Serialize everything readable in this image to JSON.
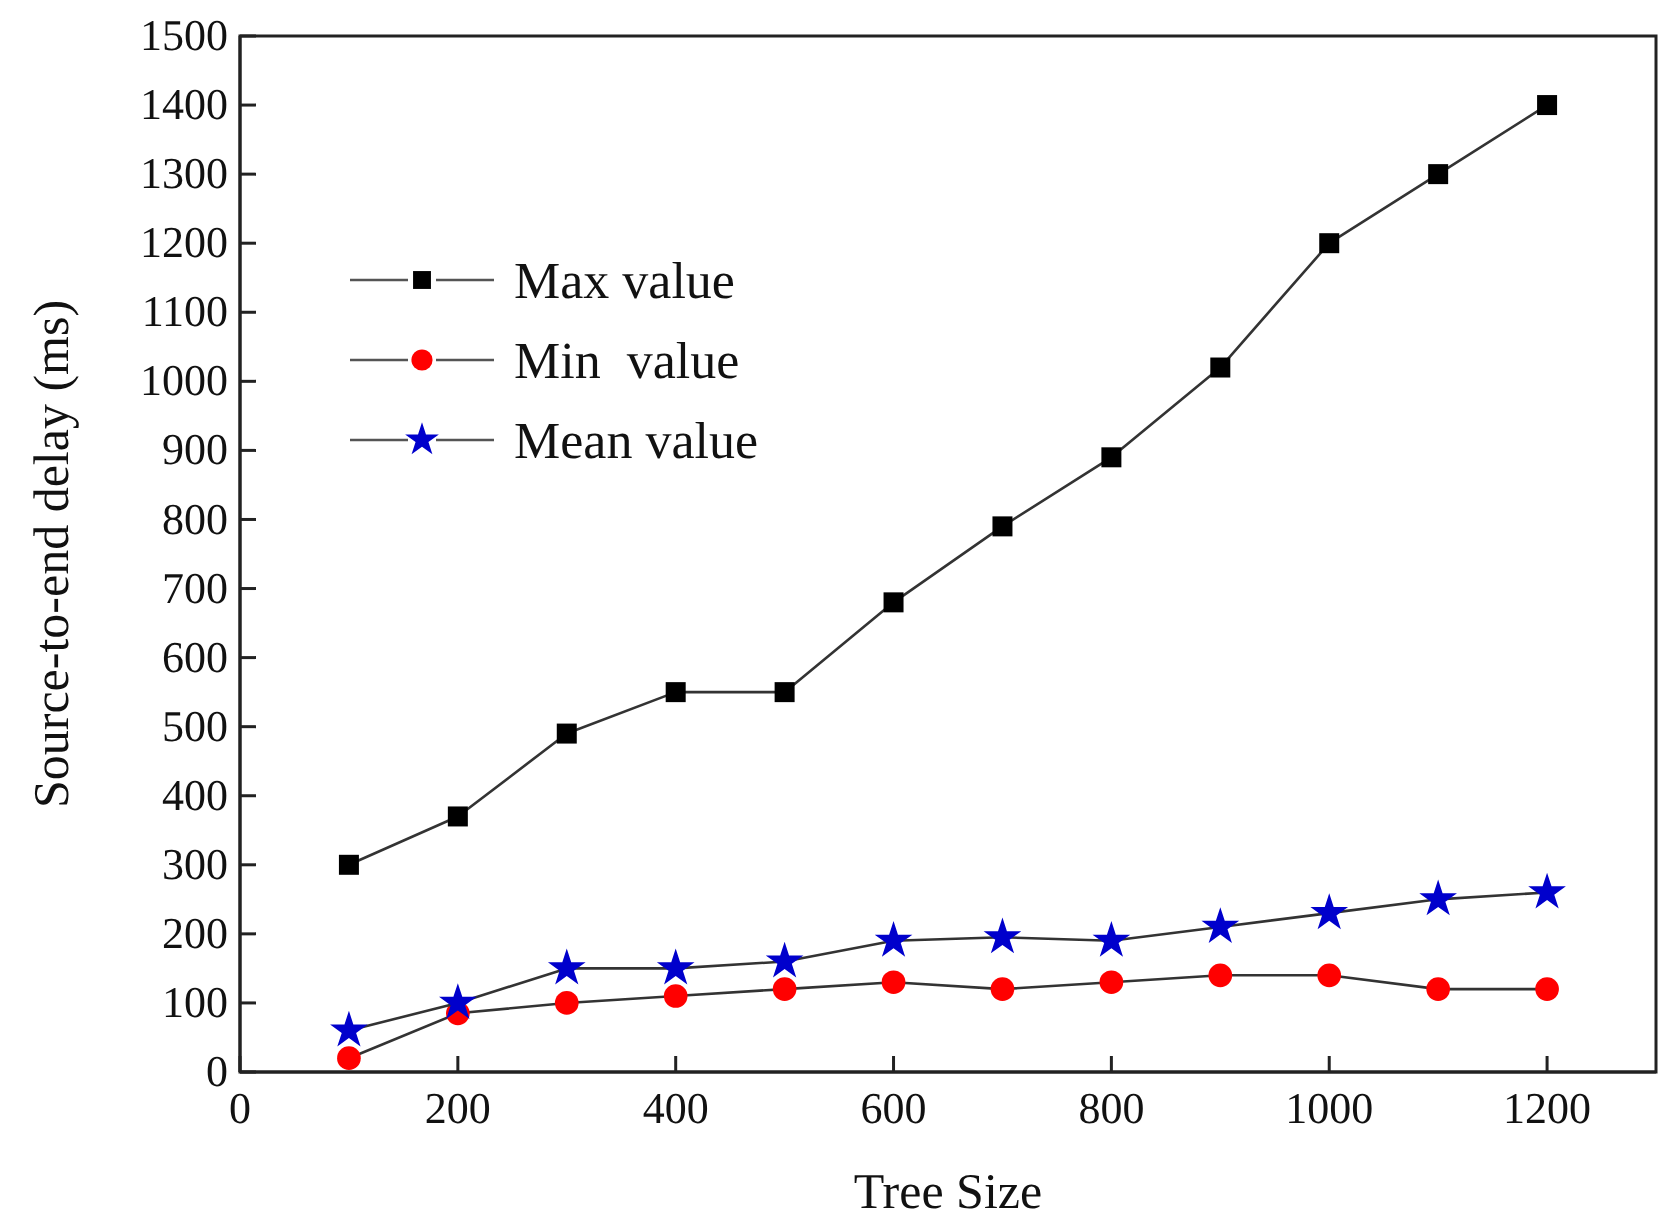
{
  "chart_data": {
    "type": "line",
    "xlabel": "Tree Size",
    "ylabel": "Source-to-end delay (ms)",
    "x": [
      100,
      200,
      300,
      400,
      500,
      600,
      700,
      800,
      900,
      1000,
      1100,
      1200
    ],
    "series": [
      {
        "name": "Max value",
        "color": "#000000",
        "marker": "square",
        "values": [
          300,
          370,
          490,
          550,
          550,
          680,
          790,
          890,
          1020,
          1200,
          1300,
          1400
        ]
      },
      {
        "name": "Min  value",
        "color": "#ff0000",
        "marker": "circle",
        "values": [
          20,
          85,
          100,
          110,
          120,
          130,
          120,
          130,
          140,
          140,
          120,
          120
        ]
      },
      {
        "name": "Mean value",
        "color": "#0000cc",
        "marker": "star",
        "values": [
          60,
          100,
          150,
          150,
          160,
          190,
          195,
          190,
          210,
          230,
          250,
          260
        ]
      }
    ],
    "xlim": [
      0,
      1300
    ],
    "xticks": [
      0,
      200,
      400,
      600,
      800,
      1000,
      1200
    ],
    "ylim": [
      0,
      1500
    ],
    "yticks": [
      0,
      100,
      200,
      300,
      400,
      500,
      600,
      700,
      800,
      900,
      1000,
      1100,
      1200,
      1300,
      1400,
      1500
    ],
    "grid": false,
    "legend": "top left",
    "line_style": "solid"
  }
}
